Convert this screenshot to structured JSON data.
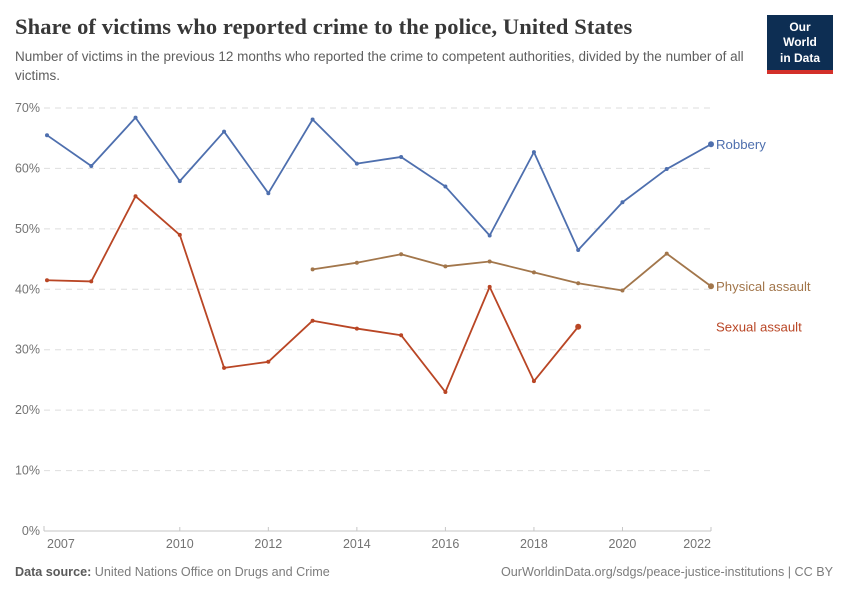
{
  "header": {
    "title": "Share of victims who reported crime to the police, United States",
    "subtitle": "Number of victims in the previous 12 months who reported the crime to competent authorities, divided by the number of all victims.",
    "logo": {
      "line1": "Our World",
      "line2": "in Data",
      "bg_color": "#0d2e53",
      "accent_color": "#d3302a"
    }
  },
  "chart_data": {
    "type": "line",
    "title": "Share of victims who reported crime to the police, United States",
    "xlabel": "",
    "ylabel": "",
    "xlim": [
      2007,
      2022
    ],
    "ylim": [
      0,
      70
    ],
    "y_ticks": [
      0,
      10,
      20,
      30,
      40,
      50,
      60,
      70
    ],
    "y_tick_suffix": "%",
    "x_ticks": [
      2007,
      2010,
      2012,
      2014,
      2016,
      2018,
      2020,
      2022
    ],
    "grid": "horizontal-dashed",
    "legend_position": "right-edge-line-labels",
    "series": [
      {
        "name": "Robbery",
        "color": "#4e6fae",
        "x": [
          2007,
          2008,
          2009,
          2010,
          2011,
          2012,
          2013,
          2014,
          2015,
          2016,
          2017,
          2018,
          2019,
          2020,
          2021,
          2022
        ],
        "values": [
          65.5,
          60.4,
          68.4,
          57.9,
          66.1,
          55.9,
          68.1,
          60.8,
          61.9,
          57.0,
          48.9,
          62.7,
          46.5,
          54.4,
          59.9,
          64.0
        ]
      },
      {
        "name": "Physical assault",
        "color": "#a2764b",
        "x": [
          2013,
          2014,
          2015,
          2016,
          2017,
          2018,
          2019,
          2020,
          2021,
          2022
        ],
        "values": [
          43.3,
          44.4,
          45.8,
          43.8,
          44.6,
          42.8,
          41.0,
          39.8,
          45.9,
          40.5
        ]
      },
      {
        "name": "Sexual assault",
        "color": "#b94625",
        "x": [
          2007,
          2008,
          2009,
          2010,
          2011,
          2012,
          2013,
          2014,
          2015,
          2016,
          2017,
          2018,
          2019
        ],
        "values": [
          41.5,
          41.3,
          55.4,
          49.0,
          27.0,
          28.0,
          34.8,
          33.5,
          32.4,
          23.0,
          40.4,
          24.8,
          33.8
        ]
      }
    ]
  },
  "footer": {
    "source_label": "Data source:",
    "source_text": " United Nations Office on Drugs and Crime",
    "link_text": "OurWorldinData.org/sdgs/peace-justice-institutions | CC BY"
  }
}
